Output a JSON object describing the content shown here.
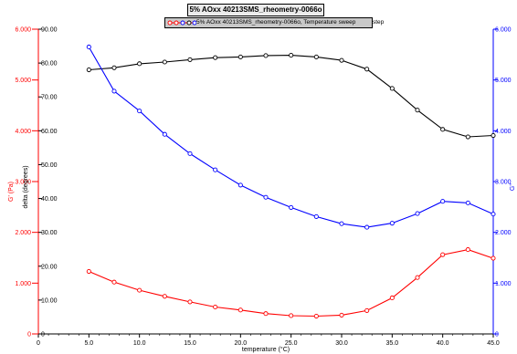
{
  "chart_data": {
    "type": "line",
    "title": "5% AOxx 40213SMS_rheometry-0066o",
    "legend": {
      "label": "5% AOxx 40213SMS_rheometry-0066o, Temperature sweep",
      "tail": "step",
      "placement": "top-center"
    },
    "xlabel": "temperature (°C)",
    "ylabel_left_red": "G' (Pa)",
    "ylabel_left_black": "delta (degrees)",
    "ylabel_right_blue": "G''",
    "xlim": [
      0,
      45
    ],
    "x_ticks": [
      "0",
      "5.0",
      "10.0",
      "15.0",
      "20.0",
      "25.0",
      "30.0",
      "35.0",
      "40.0",
      "45.0"
    ],
    "y_red_lim": [
      0,
      6
    ],
    "y_red_ticks": [
      "0",
      "1.000",
      "2.000",
      "3.000",
      "4.000",
      "5.000",
      "6.000"
    ],
    "y_black_lim": [
      0,
      90
    ],
    "y_black_ticks": [
      "0",
      "10.00",
      "20.00",
      "30.00",
      "40.00",
      "50.00",
      "60.00",
      "70.00",
      "80.00",
      "90.00"
    ],
    "y_blue_lim": [
      0,
      6
    ],
    "y_blue_ticks": [
      "0",
      "1.000",
      "2.000",
      "3.000",
      "4.000",
      "5.000",
      "6.000"
    ],
    "grid": false,
    "x": [
      5.0,
      7.5,
      10.0,
      12.5,
      15.0,
      17.5,
      20.0,
      22.5,
      25.0,
      27.5,
      30.0,
      32.5,
      35.0,
      37.5,
      40.0,
      42.5,
      45.0
    ],
    "series": [
      {
        "name": "G'",
        "color": "#ff0000",
        "axis": "red",
        "values": [
          1.23,
          1.02,
          0.86,
          0.74,
          0.63,
          0.53,
          0.47,
          0.4,
          0.36,
          0.35,
          0.37,
          0.46,
          0.71,
          1.11,
          1.56,
          1.66,
          1.49
        ]
      },
      {
        "name": "delta",
        "color": "#000000",
        "axis": "black",
        "values": [
          78.0,
          78.6,
          79.8,
          80.3,
          81.0,
          81.6,
          81.8,
          82.2,
          82.3,
          81.8,
          80.8,
          78.2,
          72.5,
          66.1,
          60.4,
          58.2,
          58.6
        ]
      },
      {
        "name": "G''",
        "color": "#0000ff",
        "axis": "blue",
        "values": [
          5.65,
          4.78,
          4.39,
          3.93,
          3.55,
          3.23,
          2.93,
          2.69,
          2.49,
          2.31,
          2.17,
          2.1,
          2.18,
          2.37,
          2.61,
          2.58,
          2.36
        ]
      }
    ]
  },
  "colors": {
    "red": "#ff0000",
    "black": "#000000",
    "blue": "#0000ff"
  }
}
